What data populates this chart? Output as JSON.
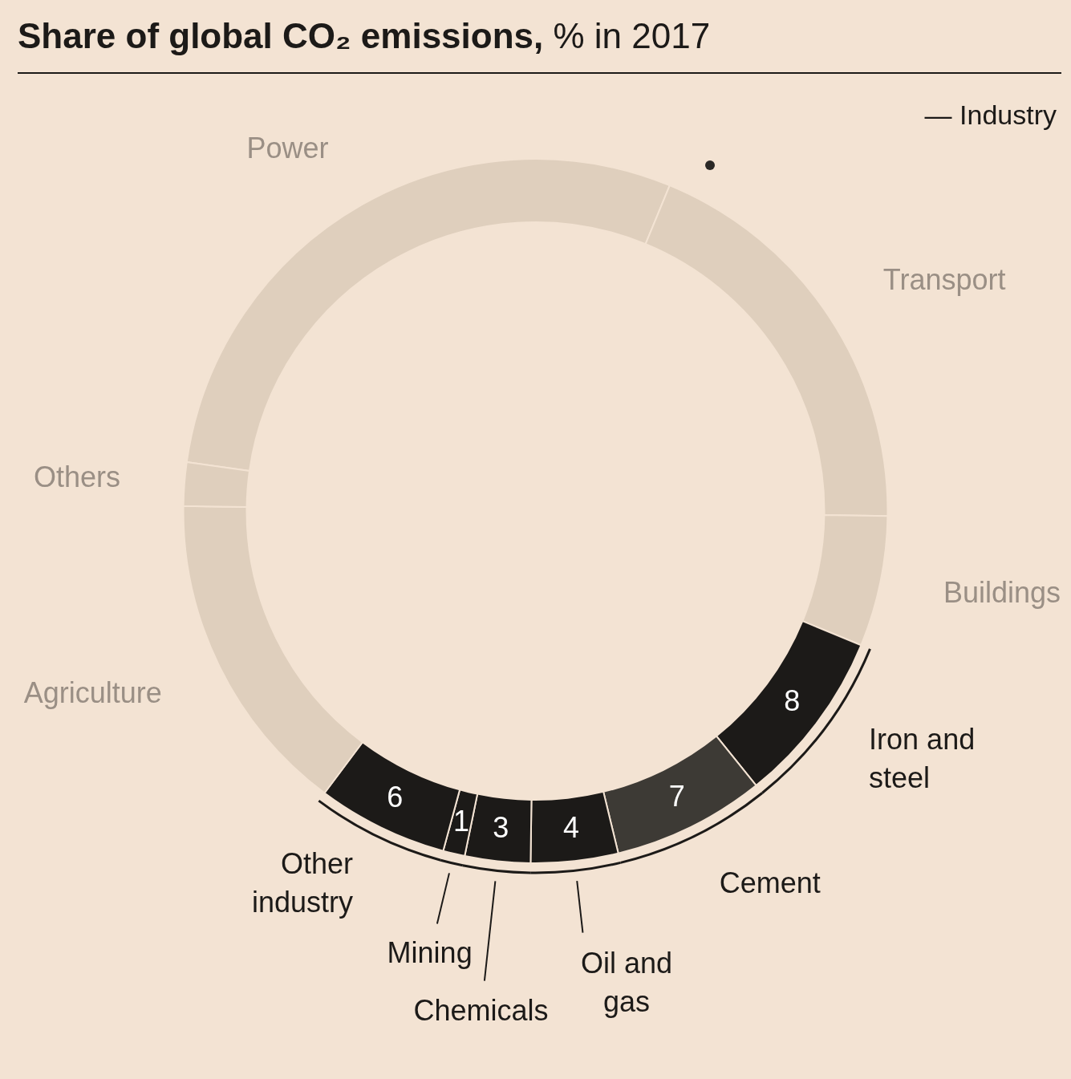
{
  "chart_data": {
    "type": "donut",
    "title": "Share of global CO₂ emissions, % in 2017",
    "categories": [
      "Power",
      "Transport",
      "Buildings",
      "Iron and steel",
      "Cement",
      "Oil and gas",
      "Chemicals",
      "Mining",
      "Other industry",
      "Agriculture",
      "Others"
    ],
    "values": [
      29,
      19,
      6,
      8,
      7,
      4,
      3,
      1,
      6,
      15,
      2
    ],
    "colors": [
      "#dfcfbd",
      "#dfcfbd",
      "#dfcfbd",
      "#1c1a18",
      "#3d3a35",
      "#1c1a18",
      "#1c1a18",
      "#1c1a18",
      "#1c1a18",
      "#dfcfbd",
      "#dfcfbd"
    ],
    "value_labels": [
      null,
      null,
      null,
      "8",
      "7",
      "4",
      "3",
      "1",
      "6",
      null,
      null
    ],
    "annotations": [
      "— Industry"
    ],
    "legend": false
  }
}
